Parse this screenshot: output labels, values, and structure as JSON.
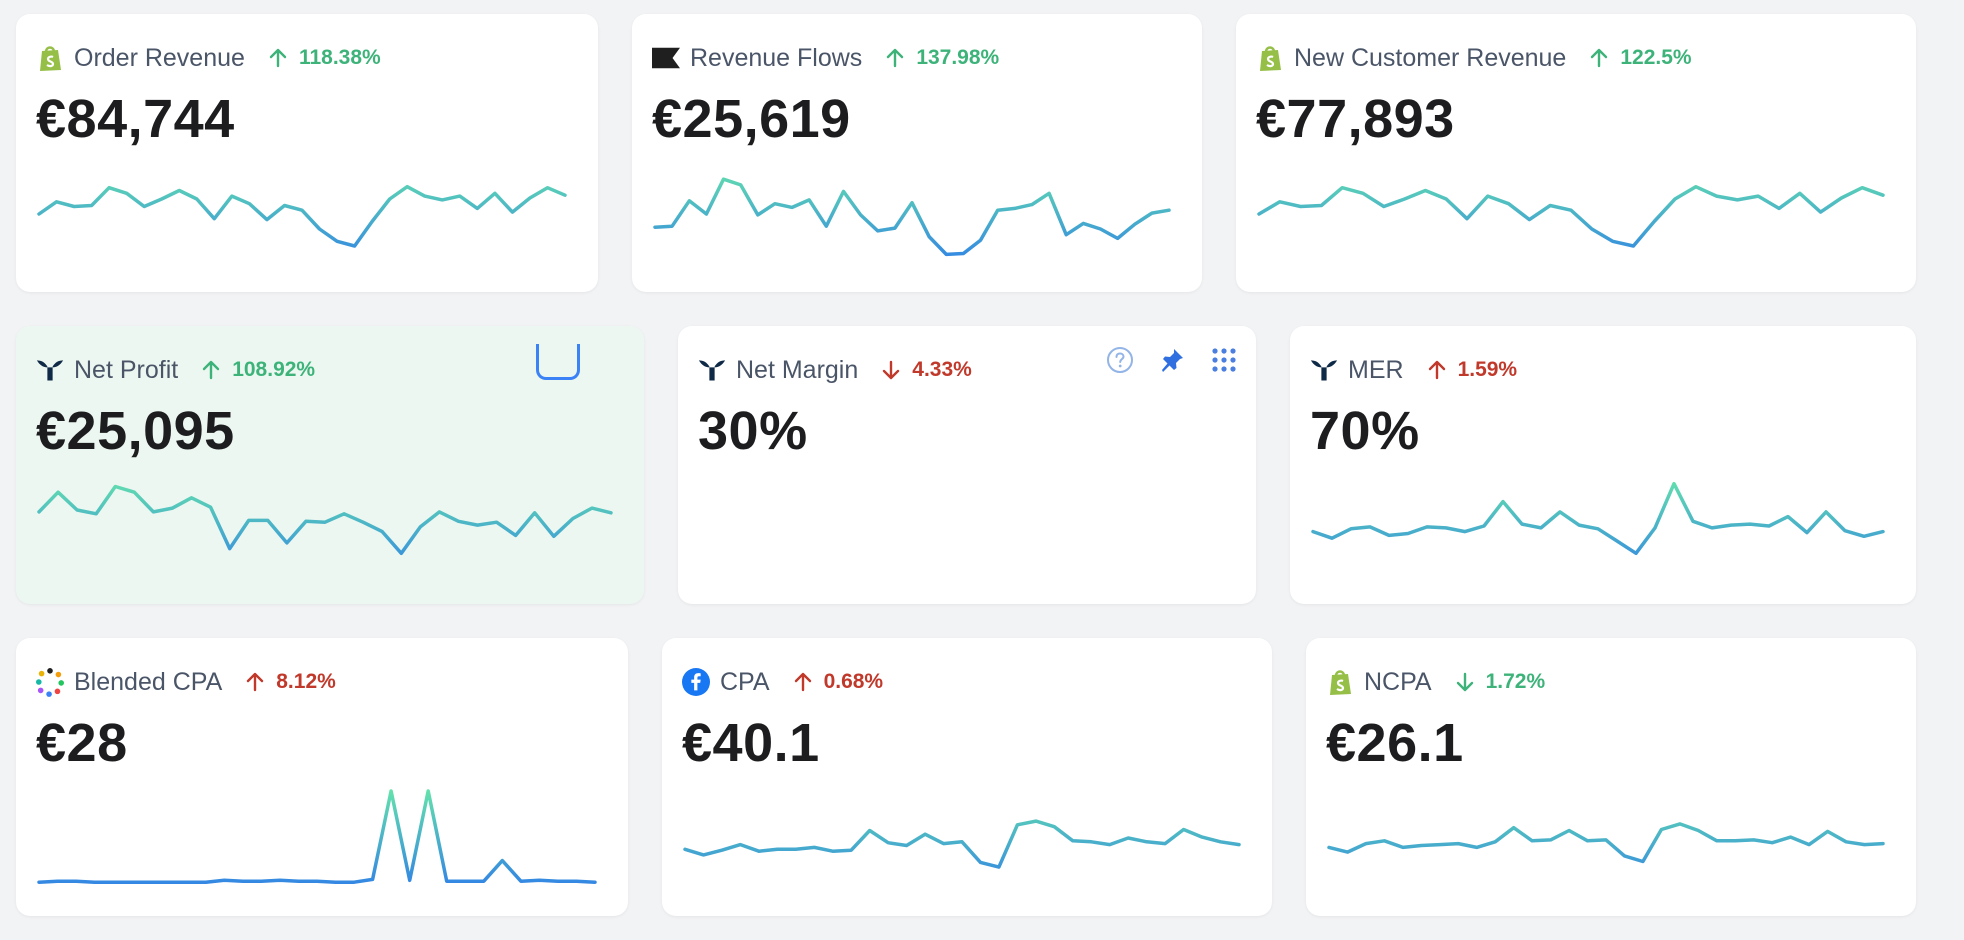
{
  "colors": {
    "line_top": "#67e8a8",
    "line_bottom": "#2f7ee8",
    "good": "#3db37a",
    "bad": "#c0392b"
  },
  "cards": [
    {
      "id": "order-revenue",
      "label": "Order Revenue",
      "icon": "shopify-icon",
      "trend": "up",
      "good": true,
      "change": "118.38%",
      "value": "€84,744",
      "series": [
        50,
        63,
        58,
        59,
        78,
        72,
        58,
        66,
        75,
        66,
        45,
        69,
        61,
        44,
        59,
        54,
        34,
        21,
        16,
        42,
        66,
        79,
        69,
        65,
        69,
        56,
        72,
        52,
        67,
        78,
        70
      ]
    },
    {
      "id": "revenue-flows",
      "label": "Revenue Flows",
      "icon": "flag-icon",
      "trend": "up",
      "good": true,
      "change": "137.98%",
      "value": "€25,619",
      "series": [
        36,
        37,
        64,
        50,
        87,
        81,
        49,
        61,
        57,
        65,
        37,
        74,
        49,
        32,
        35,
        62,
        26,
        7,
        8,
        22,
        54,
        56,
        60,
        72,
        28,
        40,
        34,
        24,
        39,
        51,
        54
      ]
    },
    {
      "id": "new-customer-revenue",
      "label": "New Customer Revenue",
      "icon": "shopify-icon",
      "trend": "up",
      "good": true,
      "change": "122.5%",
      "value": "€77,893",
      "series": [
        50,
        63,
        58,
        59,
        78,
        72,
        58,
        66,
        75,
        66,
        45,
        69,
        61,
        44,
        59,
        54,
        34,
        21,
        16,
        42,
        66,
        79,
        69,
        65,
        69,
        56,
        72,
        52,
        67,
        78,
        70
      ]
    },
    {
      "id": "net-profit",
      "label": "Net Profit",
      "icon": "triple-whale-icon",
      "trend": "up",
      "good": true,
      "change": "108.92%",
      "value": "€25,095",
      "series": [
        65,
        86,
        67,
        63,
        92,
        86,
        65,
        69,
        80,
        70,
        26,
        56,
        56,
        32,
        55,
        54,
        63,
        54,
        44,
        21,
        49,
        65,
        55,
        51,
        54,
        40,
        64,
        39,
        58,
        69,
        64
      ],
      "highlight": true,
      "drag": true
    },
    {
      "id": "net-margin",
      "label": "Net Margin",
      "icon": "triple-whale-icon",
      "trend": "down",
      "good": false,
      "change": "4.33%",
      "value": "30%",
      "series": [],
      "tools": true
    },
    {
      "id": "mer",
      "label": "MER",
      "icon": "triple-whale-icon",
      "trend": "up",
      "good": false,
      "change": "1.59%",
      "value": "70%",
      "series": [
        44,
        37,
        47,
        49,
        40,
        42,
        49,
        48,
        44,
        50,
        76,
        52,
        48,
        65,
        51,
        47,
        34,
        21,
        48,
        95,
        55,
        48,
        51,
        52,
        50,
        60,
        43,
        65,
        45,
        39,
        44
      ]
    },
    {
      "id": "blended-cpa",
      "label": "Blended CPA",
      "icon": "blended-dots-icon",
      "trend": "up",
      "good": false,
      "change": "8.12%",
      "value": "€28",
      "series": [
        3,
        4,
        4,
        3,
        3,
        3,
        3,
        3,
        3,
        3,
        5,
        4,
        4,
        5,
        4,
        4,
        3,
        3,
        6,
        100,
        5,
        100,
        4,
        4,
        4,
        26,
        4,
        5,
        4,
        4,
        3
      ]
    },
    {
      "id": "cpa",
      "label": "CPA",
      "icon": "facebook-icon",
      "trend": "up",
      "good": false,
      "change": "0.68%",
      "value": "€40.1",
      "series": [
        38,
        32,
        37,
        43,
        36,
        38,
        38,
        40,
        36,
        37,
        58,
        45,
        42,
        54,
        44,
        46,
        24,
        19,
        64,
        68,
        62,
        47,
        46,
        43,
        50,
        46,
        44,
        59,
        51,
        46,
        43
      ]
    },
    {
      "id": "ncpa",
      "label": "NCPA",
      "icon": "shopify-icon",
      "trend": "down",
      "good": true,
      "change": "1.72%",
      "value": "€26.1",
      "series": [
        40,
        35,
        44,
        47,
        40,
        42,
        43,
        44,
        40,
        46,
        61,
        47,
        48,
        58,
        47,
        48,
        31,
        25,
        59,
        65,
        58,
        47,
        47,
        48,
        45,
        51,
        43,
        57,
        46,
        43,
        44
      ]
    }
  ]
}
